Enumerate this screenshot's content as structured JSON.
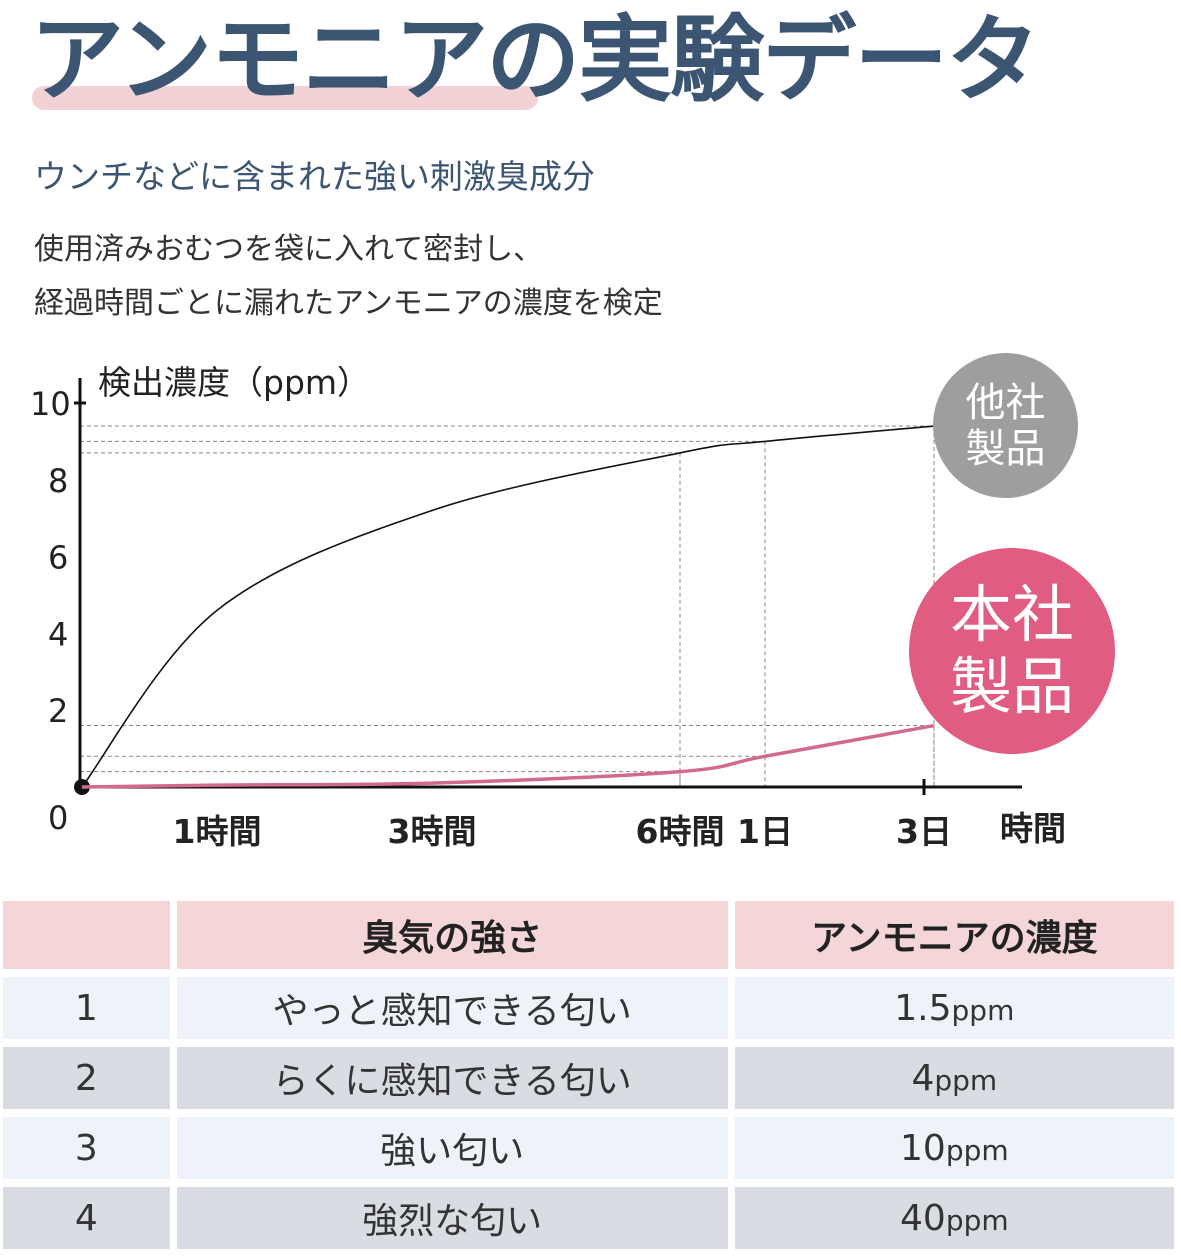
{
  "header": {
    "title": "アンモニアの実験データ",
    "subtitle": "ウンチなどに含まれた強い刺激臭成分",
    "description_line1": "使用済みおむつを袋に入れて密封し、",
    "description_line2": "経過時間ごとに漏れたアンモニアの濃度を検定"
  },
  "badges": {
    "other_line1": "他社",
    "other_line2": "製品",
    "ours_line1": "本社",
    "ours_line2": "製品"
  },
  "colors": {
    "title": "#3c5573",
    "other_product": "#9e9e9e",
    "our_product": "#e05c80",
    "our_line": "#d2698e",
    "table_header": "#f4d6d9",
    "row_light": "#eef3f9",
    "row_dark": "#d9dde3"
  },
  "chart_data": {
    "type": "line",
    "ylabel": "検出濃度（ppm）",
    "xlabel": "時間",
    "ylim": [
      0,
      10
    ],
    "yticks": [
      "0",
      "2",
      "4",
      "6",
      "8",
      "10"
    ],
    "x_categories": [
      "0",
      "1時間",
      "3時間",
      "6時間",
      "1日",
      "3日"
    ],
    "series": [
      {
        "name": "他社製品",
        "values": [
          0,
          4.6,
          7.2,
          8.7,
          9.0,
          9.4
        ]
      },
      {
        "name": "本社製品",
        "values": [
          0,
          0.05,
          0.1,
          0.4,
          0.8,
          1.6
        ]
      }
    ]
  },
  "table": {
    "headers": [
      "",
      "臭気の強さ",
      "アンモニアの濃度"
    ],
    "rows": [
      {
        "level": "1",
        "odor": "やっと感知できる匂い",
        "value": "1.5",
        "unit": "ppm"
      },
      {
        "level": "2",
        "odor": "らくに感知できる匂い",
        "value": "4",
        "unit": "ppm"
      },
      {
        "level": "3",
        "odor": "強い匂い",
        "value": "10",
        "unit": "ppm"
      },
      {
        "level": "4",
        "odor": "強烈な匂い",
        "value": "40",
        "unit": "ppm"
      }
    ]
  }
}
